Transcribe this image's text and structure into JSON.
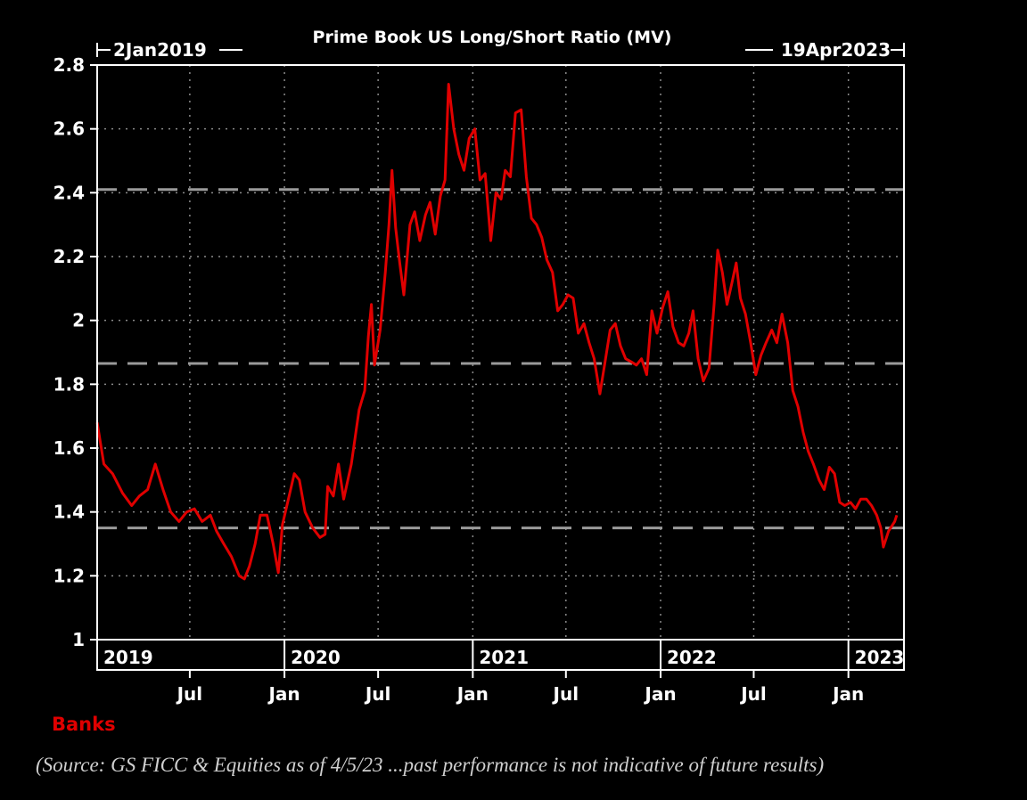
{
  "chart_data": {
    "type": "line",
    "title": "Prime Book US Long/Short Ratio (MV)",
    "date_range": {
      "start_label": "2Jan2019",
      "end_label": "19Apr2023",
      "start": "2019-01-02",
      "end": "2023-04-19"
    },
    "ylim": [
      1,
      2.8
    ],
    "y_ticks": [
      "1",
      "1.2",
      "1.4",
      "1.6",
      "1.8",
      "2",
      "2.2",
      "2.4",
      "2.6",
      "2.8"
    ],
    "x_ticks": [
      {
        "label": "Jul",
        "date": "2019-07-01"
      },
      {
        "label": "Jan",
        "date": "2020-01-01"
      },
      {
        "label": "Jul",
        "date": "2020-07-01"
      },
      {
        "label": "Jan",
        "date": "2021-01-01"
      },
      {
        "label": "Jul",
        "date": "2021-07-01"
      },
      {
        "label": "Jan",
        "date": "2022-01-01"
      },
      {
        "label": "Jul",
        "date": "2022-07-01"
      },
      {
        "label": "Jan",
        "date": "2023-01-01"
      }
    ],
    "year_labels": [
      {
        "label": "2019",
        "date": "2019-01-02"
      },
      {
        "label": "2020",
        "date": "2020-01-01"
      },
      {
        "label": "2021",
        "date": "2021-01-01"
      },
      {
        "label": "2022",
        "date": "2022-01-01"
      },
      {
        "label": "2023",
        "date": "2023-01-01"
      }
    ],
    "reference_lines": [
      2.41,
      1.865,
      1.35
    ],
    "grid": true,
    "series": [
      {
        "name": "Banks",
        "color": "#e00000",
        "points": [
          [
            "2019-01-02",
            1.68
          ],
          [
            "2019-01-15",
            1.55
          ],
          [
            "2019-02-01",
            1.52
          ],
          [
            "2019-02-20",
            1.46
          ],
          [
            "2019-03-10",
            1.42
          ],
          [
            "2019-03-25",
            1.45
          ],
          [
            "2019-04-10",
            1.47
          ],
          [
            "2019-04-25",
            1.55
          ],
          [
            "2019-05-10",
            1.47
          ],
          [
            "2019-05-25",
            1.4
          ],
          [
            "2019-06-10",
            1.37
          ],
          [
            "2019-06-25",
            1.4
          ],
          [
            "2019-07-10",
            1.41
          ],
          [
            "2019-07-25",
            1.37
          ],
          [
            "2019-08-10",
            1.39
          ],
          [
            "2019-08-22",
            1.34
          ],
          [
            "2019-09-05",
            1.3
          ],
          [
            "2019-09-20",
            1.26
          ],
          [
            "2019-10-05",
            1.2
          ],
          [
            "2019-10-15",
            1.19
          ],
          [
            "2019-10-25",
            1.23
          ],
          [
            "2019-11-05",
            1.3
          ],
          [
            "2019-11-15",
            1.39
          ],
          [
            "2019-11-28",
            1.39
          ],
          [
            "2019-12-10",
            1.3
          ],
          [
            "2019-12-20",
            1.21
          ],
          [
            "2019-12-28",
            1.36
          ],
          [
            "2020-01-10",
            1.45
          ],
          [
            "2020-01-20",
            1.52
          ],
          [
            "2020-01-30",
            1.5
          ],
          [
            "2020-02-10",
            1.4
          ],
          [
            "2020-02-25",
            1.35
          ],
          [
            "2020-03-10",
            1.32
          ],
          [
            "2020-03-20",
            1.33
          ],
          [
            "2020-03-25",
            1.48
          ],
          [
            "2020-04-05",
            1.45
          ],
          [
            "2020-04-15",
            1.55
          ],
          [
            "2020-04-25",
            1.44
          ],
          [
            "2020-05-10",
            1.55
          ],
          [
            "2020-05-25",
            1.72
          ],
          [
            "2020-06-05",
            1.78
          ],
          [
            "2020-06-12",
            1.95
          ],
          [
            "2020-06-18",
            2.05
          ],
          [
            "2020-06-24",
            1.86
          ],
          [
            "2020-07-05",
            1.97
          ],
          [
            "2020-07-15",
            2.15
          ],
          [
            "2020-07-22",
            2.3
          ],
          [
            "2020-07-28",
            2.47
          ],
          [
            "2020-08-04",
            2.29
          ],
          [
            "2020-08-12",
            2.18
          ],
          [
            "2020-08-20",
            2.08
          ],
          [
            "2020-09-01",
            2.3
          ],
          [
            "2020-09-10",
            2.34
          ],
          [
            "2020-09-20",
            2.25
          ],
          [
            "2020-10-01",
            2.33
          ],
          [
            "2020-10-10",
            2.37
          ],
          [
            "2020-10-20",
            2.27
          ],
          [
            "2020-10-30",
            2.39
          ],
          [
            "2020-11-08",
            2.44
          ],
          [
            "2020-11-15",
            2.74
          ],
          [
            "2020-11-25",
            2.6
          ],
          [
            "2020-12-05",
            2.52
          ],
          [
            "2020-12-15",
            2.47
          ],
          [
            "2020-12-25",
            2.57
          ],
          [
            "2021-01-05",
            2.6
          ],
          [
            "2021-01-15",
            2.44
          ],
          [
            "2021-01-25",
            2.46
          ],
          [
            "2021-02-05",
            2.25
          ],
          [
            "2021-02-15",
            2.4
          ],
          [
            "2021-02-25",
            2.38
          ],
          [
            "2021-03-05",
            2.47
          ],
          [
            "2021-03-15",
            2.45
          ],
          [
            "2021-03-25",
            2.65
          ],
          [
            "2021-04-05",
            2.66
          ],
          [
            "2021-04-15",
            2.45
          ],
          [
            "2021-04-25",
            2.32
          ],
          [
            "2021-05-05",
            2.3
          ],
          [
            "2021-05-15",
            2.26
          ],
          [
            "2021-05-25",
            2.19
          ],
          [
            "2021-06-05",
            2.15
          ],
          [
            "2021-06-15",
            2.03
          ],
          [
            "2021-06-25",
            2.05
          ],
          [
            "2021-07-05",
            2.08
          ],
          [
            "2021-07-15",
            2.07
          ],
          [
            "2021-07-25",
            1.96
          ],
          [
            "2021-08-05",
            1.99
          ],
          [
            "2021-08-15",
            1.93
          ],
          [
            "2021-08-25",
            1.88
          ],
          [
            "2021-09-05",
            1.77
          ],
          [
            "2021-09-15",
            1.87
          ],
          [
            "2021-09-25",
            1.97
          ],
          [
            "2021-10-05",
            1.99
          ],
          [
            "2021-10-15",
            1.92
          ],
          [
            "2021-10-25",
            1.88
          ],
          [
            "2021-11-05",
            1.87
          ],
          [
            "2021-11-15",
            1.86
          ],
          [
            "2021-11-25",
            1.88
          ],
          [
            "2021-12-05",
            1.83
          ],
          [
            "2021-12-15",
            2.03
          ],
          [
            "2021-12-25",
            1.96
          ],
          [
            "2022-01-05",
            2.04
          ],
          [
            "2022-01-15",
            2.09
          ],
          [
            "2022-01-25",
            1.98
          ],
          [
            "2022-02-05",
            1.93
          ],
          [
            "2022-02-15",
            1.92
          ],
          [
            "2022-02-25",
            1.96
          ],
          [
            "2022-03-05",
            2.03
          ],
          [
            "2022-03-15",
            1.88
          ],
          [
            "2022-03-25",
            1.81
          ],
          [
            "2022-04-05",
            1.85
          ],
          [
            "2022-04-15",
            2.05
          ],
          [
            "2022-04-22",
            2.22
          ],
          [
            "2022-05-01",
            2.15
          ],
          [
            "2022-05-10",
            2.05
          ],
          [
            "2022-05-20",
            2.12
          ],
          [
            "2022-05-28",
            2.18
          ],
          [
            "2022-06-05",
            2.07
          ],
          [
            "2022-06-15",
            2.02
          ],
          [
            "2022-06-25",
            1.93
          ],
          [
            "2022-07-05",
            1.83
          ],
          [
            "2022-07-15",
            1.89
          ],
          [
            "2022-07-25",
            1.93
          ],
          [
            "2022-08-05",
            1.97
          ],
          [
            "2022-08-15",
            1.93
          ],
          [
            "2022-08-25",
            2.02
          ],
          [
            "2022-09-05",
            1.93
          ],
          [
            "2022-09-15",
            1.78
          ],
          [
            "2022-09-25",
            1.73
          ],
          [
            "2022-10-05",
            1.65
          ],
          [
            "2022-10-15",
            1.59
          ],
          [
            "2022-10-25",
            1.55
          ],
          [
            "2022-11-05",
            1.5
          ],
          [
            "2022-11-15",
            1.47
          ],
          [
            "2022-11-25",
            1.54
          ],
          [
            "2022-12-05",
            1.52
          ],
          [
            "2022-12-15",
            1.43
          ],
          [
            "2022-12-25",
            1.42
          ],
          [
            "2023-01-05",
            1.43
          ],
          [
            "2023-01-15",
            1.41
          ],
          [
            "2023-01-25",
            1.44
          ],
          [
            "2023-02-05",
            1.44
          ],
          [
            "2023-02-15",
            1.42
          ],
          [
            "2023-02-25",
            1.39
          ],
          [
            "2023-03-05",
            1.35
          ],
          [
            "2023-03-10",
            1.29
          ],
          [
            "2023-03-20",
            1.34
          ],
          [
            "2023-04-01",
            1.37
          ],
          [
            "2023-04-05",
            1.39
          ]
        ]
      }
    ]
  },
  "legend": {
    "label": "Banks",
    "color": "#e00000"
  },
  "footer": {
    "source": "(Source: GS FICC & Equities as of 4/5/23 ...past performance is not indicative of future results)"
  }
}
